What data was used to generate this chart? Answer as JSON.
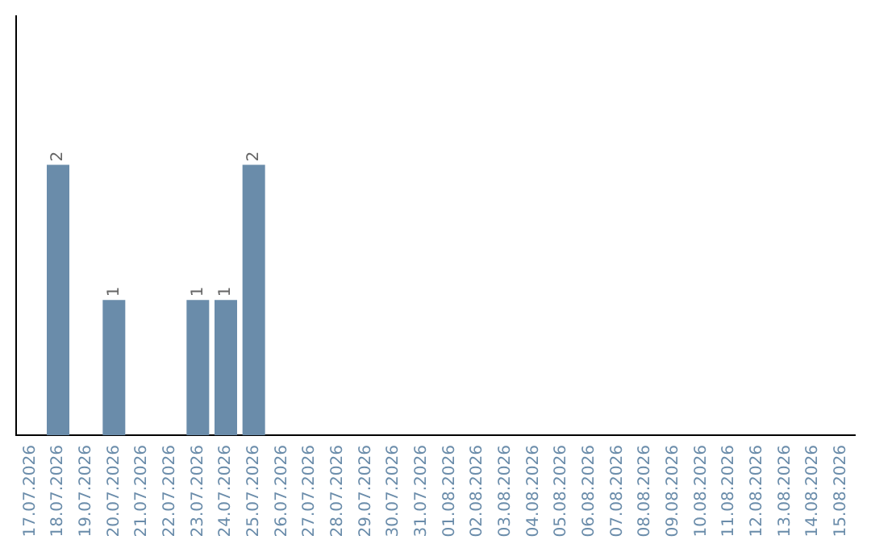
{
  "chart_data": {
    "type": "bar",
    "categories": [
      "17.07.2026",
      "18.07.2026",
      "19.07.2026",
      "20.07.2026",
      "21.07.2026",
      "22.07.2026",
      "23.07.2026",
      "24.07.2026",
      "25.07.2026",
      "26.07.2026",
      "27.07.2026",
      "28.07.2026",
      "29.07.2026",
      "30.07.2026",
      "31.07.2026",
      "01.08.2026",
      "02.08.2026",
      "03.08.2026",
      "04.08.2026",
      "05.08.2026",
      "06.08.2026",
      "07.08.2026",
      "08.08.2026",
      "09.08.2026",
      "10.08.2026",
      "11.08.2026",
      "12.08.2026",
      "13.08.2026",
      "14.08.2026",
      "15.08.2026"
    ],
    "values": [
      null,
      2,
      null,
      1,
      null,
      null,
      1,
      1,
      2,
      null,
      null,
      null,
      null,
      null,
      null,
      null,
      null,
      null,
      null,
      null,
      null,
      null,
      null,
      null,
      null,
      null,
      null,
      null,
      null,
      null
    ],
    "color": "#6a8caa",
    "ylim": [
      0,
      3.1
    ],
    "data_labels": true,
    "grid": false,
    "legend": false
  }
}
